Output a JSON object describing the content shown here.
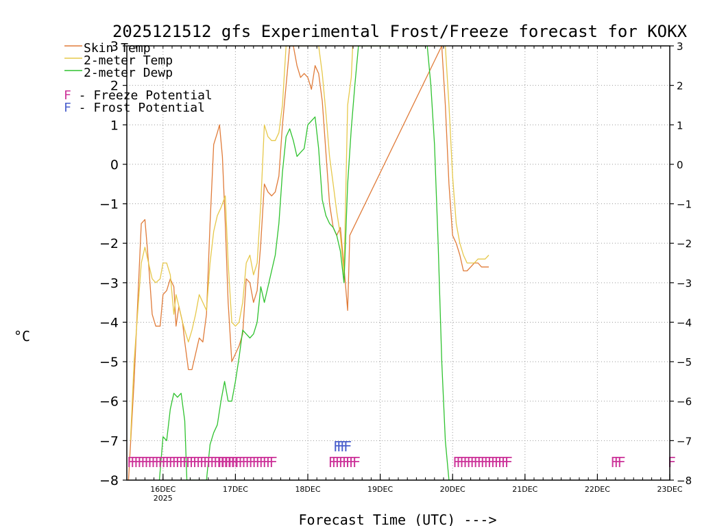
{
  "chart_data": {
    "type": "line",
    "title": "2025121512 gfs Experimental Frost/Freeze forecast for KOKX",
    "xlabel": "Forecast Time (UTC) --->",
    "ylabel": "°C",
    "ylim": [
      -8,
      3
    ],
    "xlim": [
      15.5,
      23.0
    ],
    "y_ticks": [
      3,
      2,
      1,
      0,
      -1,
      -2,
      -3,
      -4,
      -5,
      -6,
      -7,
      -8
    ],
    "y_tick_labels": [
      "3",
      "2",
      "1",
      "0",
      "−1",
      "−2",
      "−3",
      "−4",
      "−5",
      "−6",
      "−7",
      "−8"
    ],
    "x_ticks": [
      {
        "day": 16,
        "label": "16DEC",
        "sublabel": "2025"
      },
      {
        "day": 17,
        "label": "17DEC",
        "sublabel": ""
      },
      {
        "day": 18,
        "label": "18DEC",
        "sublabel": ""
      },
      {
        "day": 19,
        "label": "19DEC",
        "sublabel": ""
      },
      {
        "day": 20,
        "label": "20DEC",
        "sublabel": ""
      },
      {
        "day": 21,
        "label": "21DEC",
        "sublabel": ""
      },
      {
        "day": 22,
        "label": "22DEC",
        "sublabel": ""
      },
      {
        "day": 23,
        "label": "23DEC",
        "sublabel": ""
      }
    ],
    "grid": true,
    "legend_position": "top-left",
    "legend": [
      {
        "label": "Skin Temp",
        "color": "#e07b39"
      },
      {
        "label": "2-meter Temp",
        "color": "#e6c84a"
      },
      {
        "label": "2-meter Dewp",
        "color": "#2ec22e"
      }
    ],
    "potential_legend": [
      {
        "letter": "F",
        "text": " - Freeze Potential",
        "color": "#cc3399"
      },
      {
        "letter": "F",
        "text": " - Frost Potential",
        "color": "#4a5fcc"
      }
    ],
    "series": [
      {
        "name": "Skin Temp",
        "color": "#e07b39",
        "x": [
          15.52,
          15.6,
          15.7,
          15.75,
          15.8,
          15.85,
          15.9,
          15.96,
          16.0,
          16.05,
          16.1,
          16.15,
          16.18,
          16.22,
          16.27,
          16.3,
          16.35,
          16.4,
          16.45,
          16.5,
          16.55,
          16.6,
          16.65,
          16.7,
          16.75,
          16.78,
          16.82,
          16.86,
          16.9,
          16.95,
          17.0,
          17.05,
          17.1,
          17.15,
          17.2,
          17.25,
          17.3,
          17.35,
          17.4,
          17.45,
          17.5,
          17.55,
          17.6,
          17.65,
          17.75,
          17.8,
          17.85,
          17.9,
          17.95,
          18.0,
          18.05,
          18.1,
          18.15,
          18.2,
          18.25,
          18.3,
          18.35,
          18.4,
          18.45,
          18.5,
          18.55,
          18.58,
          19.85,
          19.9,
          19.95,
          20.0,
          20.05,
          20.1,
          20.15,
          20.2,
          20.25,
          20.3,
          20.35,
          20.4,
          20.45,
          20.5
        ],
        "y": [
          -8.1,
          -5.5,
          -1.5,
          -1.4,
          -2.5,
          -3.8,
          -4.1,
          -4.1,
          -3.3,
          -3.2,
          -2.9,
          -3.1,
          -4.1,
          -3.6,
          -4.0,
          -4.5,
          -5.2,
          -5.2,
          -4.8,
          -4.4,
          -4.5,
          -3.8,
          -1.5,
          0.5,
          0.8,
          1.0,
          0.2,
          -1.5,
          -3.5,
          -5.0,
          -4.8,
          -4.6,
          -4.3,
          -2.9,
          -3.0,
          -3.5,
          -3.2,
          -2.0,
          -0.5,
          -0.7,
          -0.8,
          -0.7,
          -0.3,
          1.0,
          3.0,
          3.0,
          2.5,
          2.2,
          2.3,
          2.2,
          1.9,
          2.5,
          2.3,
          1.6,
          0.3,
          -1.0,
          -1.6,
          -1.8,
          -1.6,
          -2.6,
          -3.7,
          -1.8,
          3.0,
          1.5,
          -0.5,
          -1.8,
          -2.0,
          -2.3,
          -2.7,
          -2.7,
          -2.6,
          -2.5,
          -2.5,
          -2.6,
          -2.6,
          -2.6
        ]
      },
      {
        "name": "2-meter Temp",
        "color": "#e6c84a",
        "x": [
          15.55,
          15.6,
          15.7,
          15.75,
          15.8,
          15.85,
          15.9,
          15.96,
          16.0,
          16.05,
          16.1,
          16.15,
          16.18,
          16.22,
          16.27,
          16.3,
          16.35,
          16.4,
          16.45,
          16.5,
          16.55,
          16.6,
          16.65,
          16.7,
          16.75,
          16.8,
          16.86,
          16.9,
          16.95,
          17.0,
          17.05,
          17.1,
          17.15,
          17.2,
          17.25,
          17.3,
          17.35,
          17.4,
          17.45,
          17.5,
          17.55,
          17.6,
          17.65,
          17.7,
          18.15,
          18.2,
          18.25,
          18.3,
          18.35,
          18.4,
          18.45,
          18.5,
          18.55,
          18.6,
          18.62,
          19.9,
          19.95,
          20.0,
          20.05,
          20.1,
          20.15,
          20.2,
          20.25,
          20.3,
          20.35,
          20.4,
          20.45,
          20.5
        ],
        "y": [
          -7.0,
          -5.0,
          -2.5,
          -2.1,
          -2.5,
          -2.9,
          -3.0,
          -2.9,
          -2.5,
          -2.5,
          -2.8,
          -3.8,
          -3.3,
          -3.6,
          -4.0,
          -4.2,
          -4.5,
          -4.2,
          -3.8,
          -3.3,
          -3.5,
          -3.7,
          -2.5,
          -1.7,
          -1.3,
          -1.1,
          -0.8,
          -2.5,
          -4.0,
          -4.1,
          -4.0,
          -3.5,
          -2.5,
          -2.3,
          -2.8,
          -2.5,
          -1.0,
          1.0,
          0.7,
          0.6,
          0.6,
          0.8,
          1.5,
          3.0,
          3.0,
          2.3,
          1.3,
          0.2,
          -0.5,
          -1.2,
          -1.8,
          -2.8,
          1.5,
          2.2,
          3.0,
          3.0,
          1.5,
          -0.3,
          -1.5,
          -2.0,
          -2.3,
          -2.5,
          -2.5,
          -2.5,
          -2.4,
          -2.4,
          -2.4,
          -2.3
        ]
      },
      {
        "name": "2-meter Dewp",
        "color": "#2ec22e",
        "x": [
          15.95,
          16.0,
          16.05,
          16.1,
          16.15,
          16.2,
          16.25,
          16.3,
          16.33,
          16.6,
          16.65,
          16.7,
          16.75,
          16.8,
          16.85,
          16.9,
          16.95,
          17.0,
          17.05,
          17.1,
          17.15,
          17.2,
          17.25,
          17.3,
          17.35,
          17.4,
          17.45,
          17.5,
          17.55,
          17.6,
          17.65,
          17.7,
          17.75,
          17.8,
          17.85,
          17.9,
          17.95,
          18.0,
          18.05,
          18.1,
          18.15,
          18.2,
          18.25,
          18.3,
          18.35,
          18.4,
          18.45,
          18.5,
          18.55,
          18.6,
          18.65,
          18.7,
          19.65,
          19.7,
          19.75,
          19.8,
          19.85,
          19.9,
          19.95,
          20.0
        ],
        "y": [
          -8.0,
          -6.9,
          -7.0,
          -6.2,
          -5.8,
          -5.9,
          -5.8,
          -6.5,
          -8.0,
          -8.0,
          -7.1,
          -6.8,
          -6.6,
          -6.0,
          -5.5,
          -6.0,
          -6.0,
          -5.5,
          -4.9,
          -4.2,
          -4.3,
          -4.4,
          -4.3,
          -4.0,
          -3.1,
          -3.5,
          -3.1,
          -2.7,
          -2.3,
          -1.5,
          -0.2,
          0.7,
          0.9,
          0.6,
          0.2,
          0.3,
          0.4,
          1.0,
          1.1,
          1.2,
          0.4,
          -0.9,
          -1.3,
          -1.5,
          -1.6,
          -1.8,
          -2.2,
          -3.0,
          -0.5,
          0.9,
          2.0,
          3.0,
          3.0,
          2.0,
          0.5,
          -2.0,
          -5.0,
          -7.0,
          -8.0,
          -8.0
        ]
      }
    ],
    "freeze_markers": [
      {
        "text": "FFFFFFFFFFFFFFFFFFFFFFFFFFFFFFFF",
        "x": 15.5,
        "color": "#cc3399"
      },
      {
        "text": "FFFFFFFFFFFFFFFF",
        "x": 16.75,
        "color": "#cc3399"
      },
      {
        "text": "FFFFFFFF",
        "x": 18.28,
        "color": "#cc3399"
      },
      {
        "text": "FFFFFFFFFFFFFFFF",
        "x": 20.0,
        "color": "#cc3399"
      },
      {
        "text": "FFF",
        "x": 22.18,
        "color": "#cc3399"
      },
      {
        "text": "F",
        "x": 22.97,
        "color": "#cc3399"
      }
    ],
    "frost_markers": [
      {
        "text": "FFFF",
        "x": 18.35,
        "color": "#4a5fcc"
      }
    ],
    "freeze_marker_y": -7.55,
    "frost_marker_y": -7.15
  }
}
